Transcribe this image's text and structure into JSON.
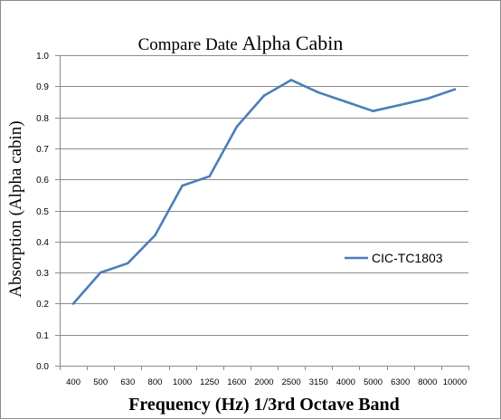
{
  "chart_data": {
    "type": "line",
    "title": "Compare Date",
    "title_emphasis": "Alpha Cabin",
    "xlabel": "Frequency (Hz) 1/3rd Octave Band",
    "ylabel": "Absorption (Alpha cabin)",
    "categories": [
      "400",
      "500",
      "630",
      "800",
      "1000",
      "1250",
      "1600",
      "2000",
      "2500",
      "3150",
      "4000",
      "5000",
      "6300",
      "8000",
      "10000"
    ],
    "series": [
      {
        "name": "CIC-TC1803",
        "color": "#4a7ebb",
        "values": [
          0.2,
          0.3,
          0.33,
          0.42,
          0.58,
          0.61,
          0.77,
          0.87,
          0.92,
          0.88,
          0.85,
          0.82,
          0.84,
          0.86,
          0.89
        ]
      }
    ],
    "ylim": [
      0,
      1.0
    ],
    "yticks": [
      "0.0",
      "0.1",
      "0.2",
      "0.3",
      "0.4",
      "0.5",
      "0.6",
      "0.7",
      "0.8",
      "0.9",
      "1.0"
    ],
    "grid": true,
    "legend_position": "right"
  }
}
